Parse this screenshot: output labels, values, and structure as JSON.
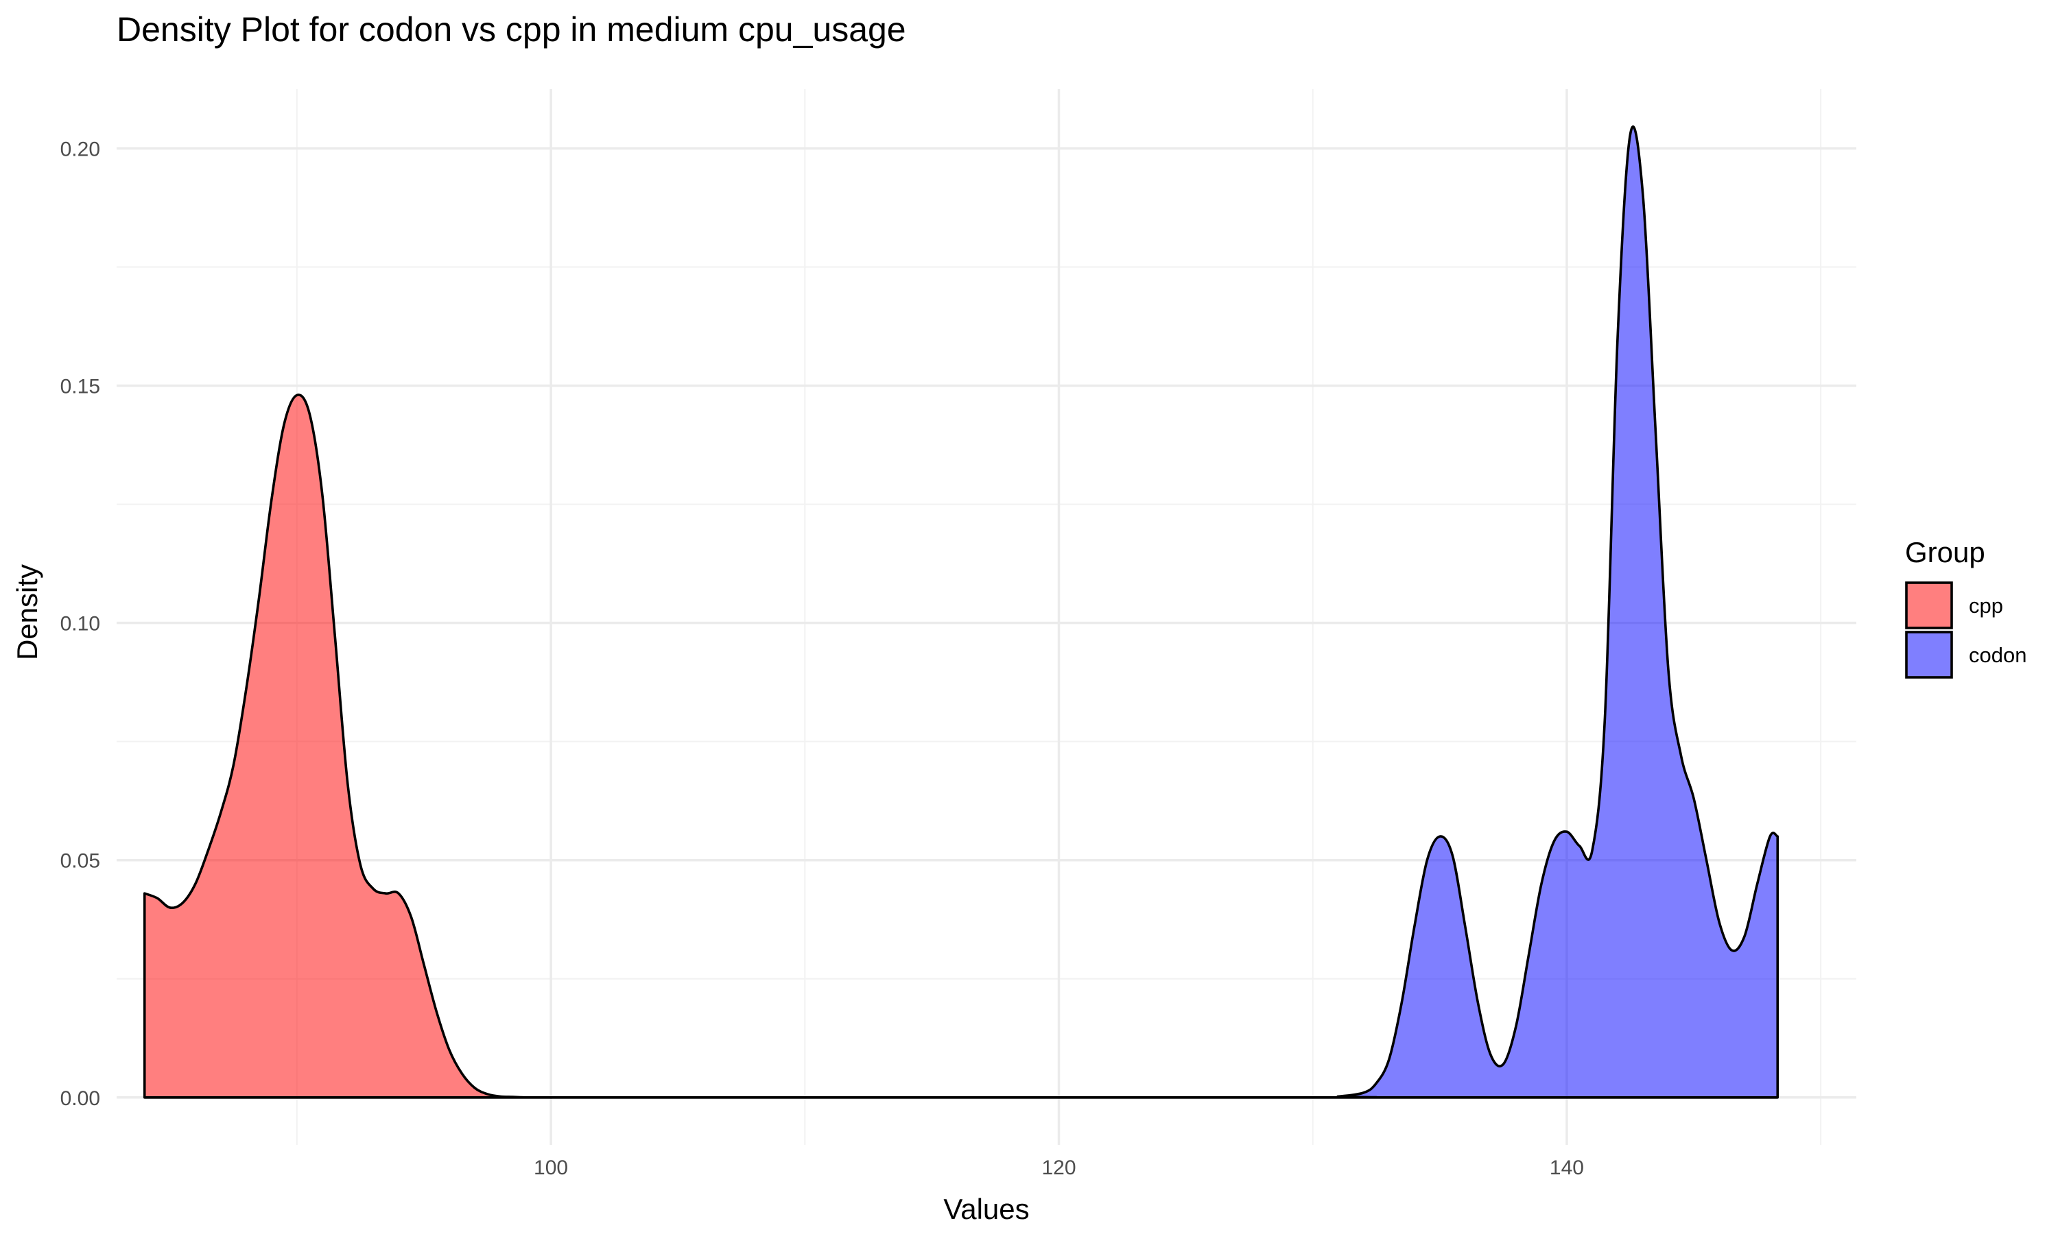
{
  "chart_data": {
    "type": "area",
    "subtype": "density",
    "title": "Density Plot for codon vs cpp in medium cpu_usage",
    "xlabel": "Values",
    "ylabel": "Density",
    "xlim": [
      82.9,
      151.4
    ],
    "ylim": [
      -0.01,
      0.2125
    ],
    "x_ticks": [
      100,
      120,
      140
    ],
    "x_minor_ticks": [
      90,
      110,
      130,
      150
    ],
    "y_ticks": [
      0.0,
      0.05,
      0.1,
      0.15,
      0.2
    ],
    "y_tick_labels": [
      "0.00",
      "0.05",
      "0.10",
      "0.15",
      "0.20"
    ],
    "y_minor_ticks": [
      0.025,
      0.075,
      0.125,
      0.175
    ],
    "grid": true,
    "legend": {
      "title": "Group",
      "placement": "right",
      "entries": [
        "cpp",
        "codon"
      ]
    },
    "series": [
      {
        "name": "cpp",
        "color": "#ff0000",
        "fill_alpha": 0.5,
        "x": [
          84.0,
          84.5,
          85.0,
          85.5,
          86.0,
          86.5,
          87.0,
          87.5,
          88.0,
          88.5,
          89.0,
          89.5,
          90.0,
          90.5,
          91.0,
          91.5,
          92.0,
          92.5,
          93.0,
          93.5,
          94.0,
          94.5,
          95.0,
          95.5,
          96.0,
          96.5,
          97.0,
          97.5,
          98.0,
          98.5,
          99.0,
          100.0
        ],
        "y": [
          0.043,
          0.042,
          0.04,
          0.041,
          0.045,
          0.052,
          0.06,
          0.07,
          0.086,
          0.105,
          0.126,
          0.142,
          0.148,
          0.144,
          0.127,
          0.097,
          0.066,
          0.049,
          0.044,
          0.043,
          0.043,
          0.038,
          0.028,
          0.018,
          0.01,
          0.005,
          0.002,
          0.0007,
          0.0002,
          0.0001,
          0.0,
          0.0
        ]
      },
      {
        "name": "codon",
        "color": "#0000ff",
        "fill_alpha": 0.5,
        "x": [
          100.0,
          130.0,
          131.0,
          132.0,
          132.5,
          133.0,
          133.5,
          134.0,
          134.5,
          135.0,
          135.5,
          136.0,
          136.5,
          137.0,
          137.5,
          138.0,
          138.5,
          139.0,
          139.5,
          140.0,
          140.5,
          141.0,
          141.5,
          142.0,
          142.5,
          143.0,
          143.5,
          144.0,
          144.5,
          145.0,
          145.5,
          146.0,
          146.5,
          147.0,
          147.5,
          148.0,
          148.3
        ],
        "y": [
          0.0,
          0.0,
          0.0002,
          0.001,
          0.003,
          0.008,
          0.02,
          0.036,
          0.05,
          0.055,
          0.051,
          0.036,
          0.02,
          0.009,
          0.007,
          0.015,
          0.03,
          0.045,
          0.054,
          0.056,
          0.053,
          0.052,
          0.08,
          0.16,
          0.203,
          0.19,
          0.14,
          0.09,
          0.072,
          0.063,
          0.05,
          0.037,
          0.031,
          0.034,
          0.045,
          0.055,
          0.055
        ]
      }
    ]
  }
}
